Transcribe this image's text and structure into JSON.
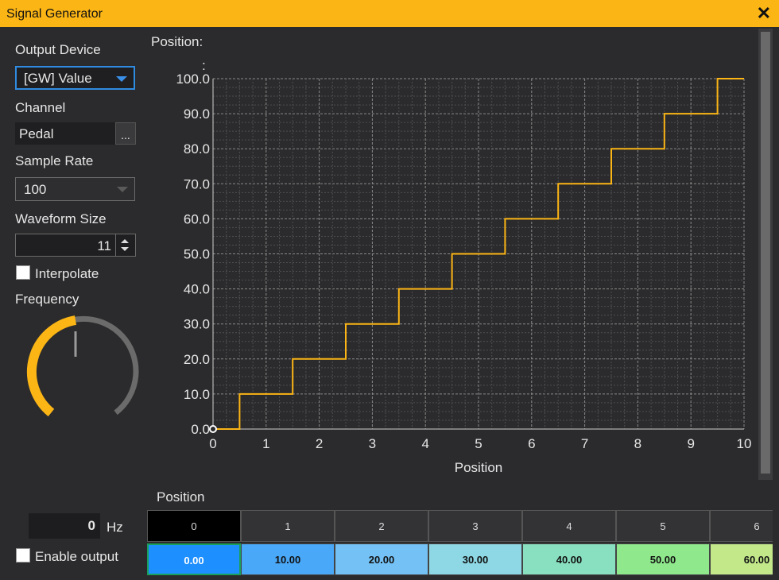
{
  "window": {
    "title": "Signal Generator",
    "close_glyph": "✕"
  },
  "sidebar": {
    "output_device_label": "Output Device",
    "output_device_value": "[GW] Value",
    "channel_label": "Channel",
    "channel_value": "Pedal",
    "channel_browse": "...",
    "sample_rate_label": "Sample Rate",
    "sample_rate_value": "100",
    "waveform_size_label": "Waveform Size",
    "waveform_size_value": "11",
    "interpolate_label": "Interpolate",
    "interpolate_checked": false,
    "frequency_label": "Frequency",
    "frequency_knob_level": 0,
    "frequency_value": "0",
    "frequency_unit": "Hz",
    "enable_output_label": "Enable output",
    "enable_output_checked": false
  },
  "chart_data": {
    "type": "line",
    "step": true,
    "title": "Position:",
    "title_extra": ":",
    "xlabel": "Position",
    "ylabel": "",
    "x": [
      0,
      1,
      2,
      3,
      4,
      5,
      6,
      7,
      8,
      9,
      10
    ],
    "y": [
      0,
      10,
      20,
      30,
      40,
      50,
      60,
      70,
      80,
      90,
      100
    ],
    "xlim": [
      0,
      10
    ],
    "ylim": [
      0,
      100
    ],
    "xticks": [
      "0",
      "1",
      "2",
      "3",
      "4",
      "5",
      "6",
      "7",
      "8",
      "9",
      "10"
    ],
    "yticks": [
      "0.0",
      "10.0",
      "20.0",
      "30.0",
      "40.0",
      "50.0",
      "60.0",
      "70.0",
      "80.0",
      "90.0",
      "100.0"
    ],
    "grid": true,
    "line_color": "#fbb515"
  },
  "table": {
    "label": "Position",
    "headers": [
      "0",
      "1",
      "2",
      "3",
      "4",
      "5",
      "6"
    ],
    "values": [
      "0.00",
      "10.00",
      "20.00",
      "30.00",
      "40.00",
      "50.00",
      "60.00"
    ],
    "colors": [
      "#1e8fff",
      "#4aa8f8",
      "#74c2f5",
      "#8dd8e4",
      "#89e0c0",
      "#8fe88c",
      "#c2e88a"
    ]
  },
  "colors": {
    "accent": "#fbb515",
    "background": "#2b2b2d",
    "selection": "#2f8be0"
  }
}
